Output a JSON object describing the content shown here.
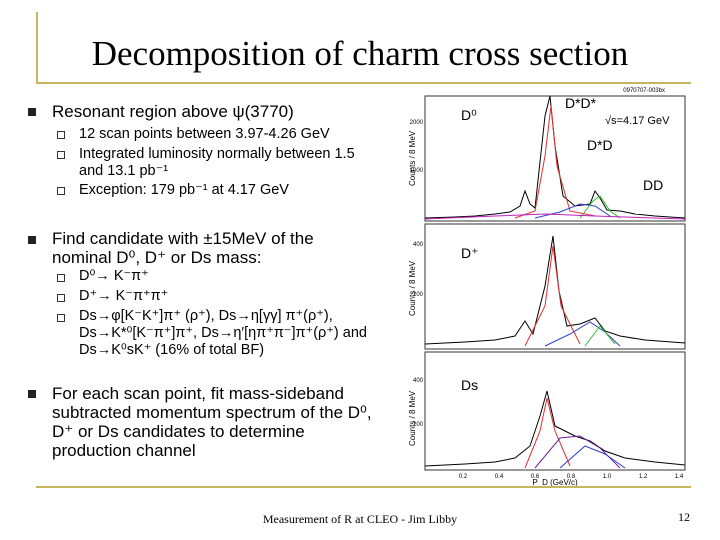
{
  "title": "Decomposition of charm cross section",
  "bullets": [
    {
      "text": "Resonant region above ψ(3770)",
      "sub": [
        "12 scan points between 3.97-4.26 GeV",
        "Integrated luminosity normally between 1.5 and 13.1 pb⁻¹",
        "Exception: 179 pb⁻¹ at 4.17 GeV"
      ]
    },
    {
      "text": "Find candidate with ±15MeV of the nominal D⁰, D⁺ or Ds mass:",
      "sub": [
        "D⁰→ K⁻π⁺",
        "D⁺→ K⁻π⁺π⁺",
        "Ds→φ[K⁻K⁺]π⁺ (ρ⁺), Ds→η[γγ] π⁺(ρ⁺), Ds→K*⁰[K⁻π⁺]π⁺, Ds→η′[ηπ⁺π⁻]π⁺(ρ⁺) and Ds→K⁰sK⁺ (16% of total BF)"
      ]
    },
    {
      "text": "For each scan point, fit mass-sideband subtracted momentum spectrum of the D⁰, D⁺ or Ds candidates to determine production channel"
    }
  ],
  "plot": {
    "code": "0970707-003bx",
    "labels": [
      "D⁰",
      "D*D*",
      "√s=4.17 GeV",
      "D*D",
      "DD",
      "D⁺",
      "Ds"
    ],
    "y_axis_label": "Counts / 8 MeV",
    "x_axis_label": "P_D (GeV/c)",
    "panel_yticks": [
      [
        "2000",
        "1000"
      ],
      [
        "400",
        "200"
      ],
      [
        "400",
        "200"
      ]
    ],
    "xticks": [
      "0.2",
      "0.4",
      "0.6",
      "0.8",
      "1.0",
      "1.2",
      "1.4"
    ]
  },
  "footer": "Measurement of R at CLEO - Jim Libby",
  "page_number": "12"
}
